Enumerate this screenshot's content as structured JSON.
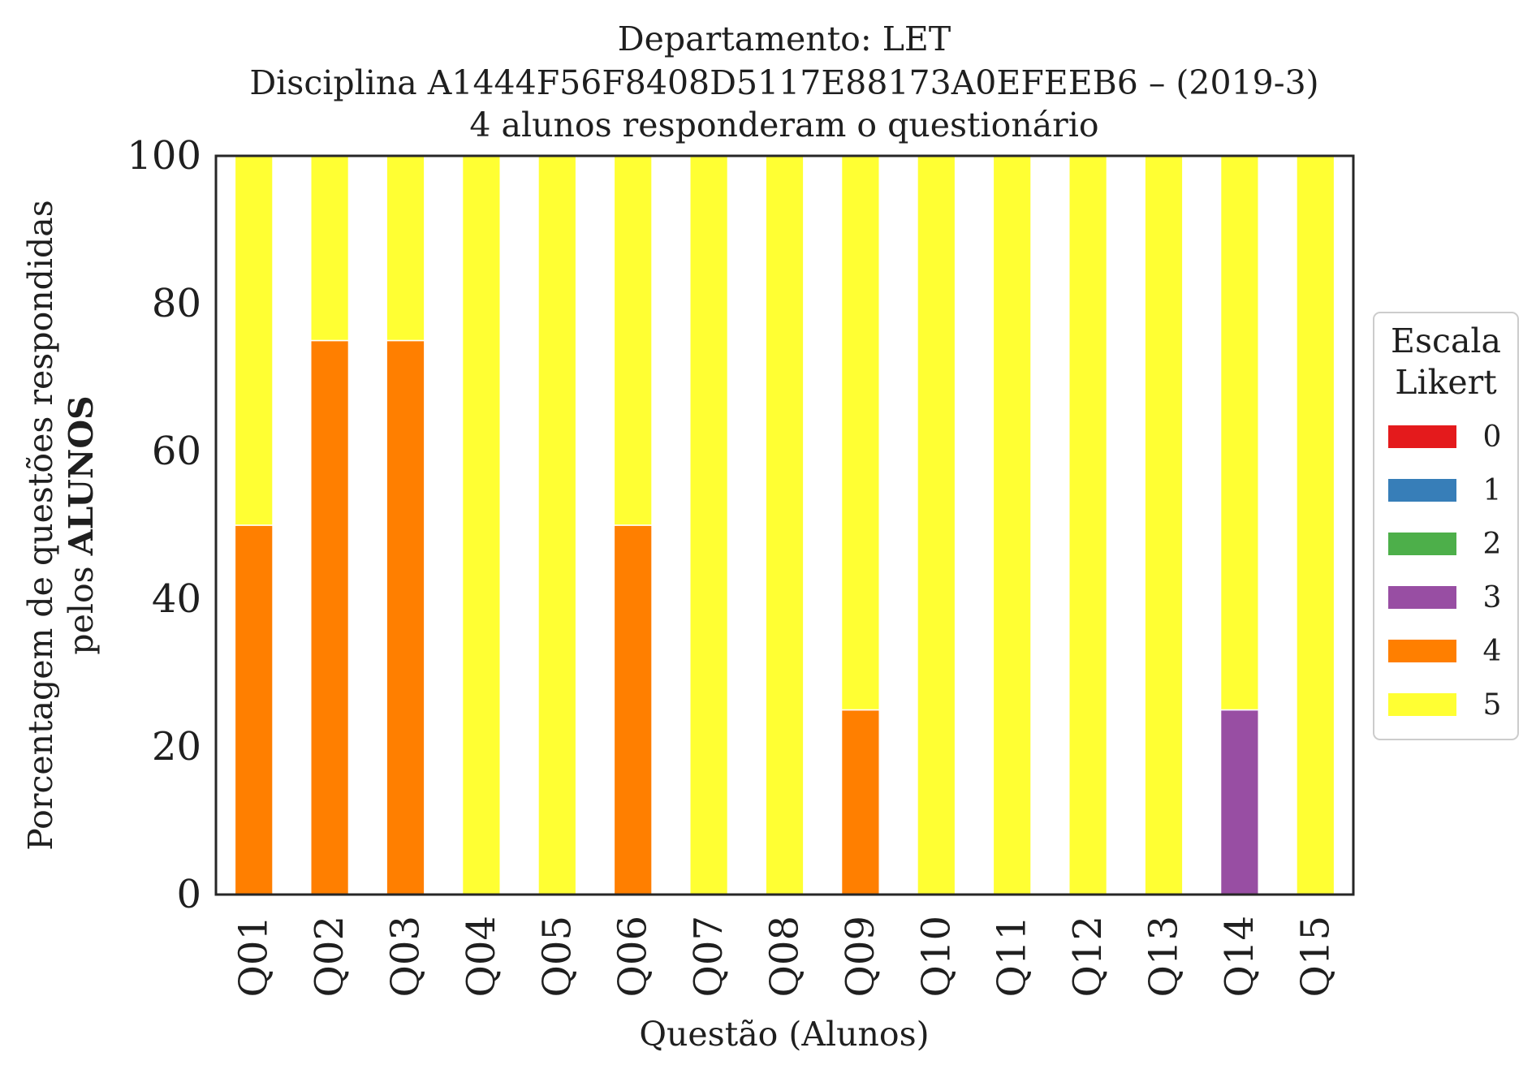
{
  "chart_data": {
    "type": "bar",
    "stacked": true,
    "title_lines": [
      "Departamento: LET",
      "Disciplina A1444F56F8408D5117E88173A0EFEEB6 – (2019-3)",
      "4 alunos responderam o questionário"
    ],
    "xlabel": "Questão (Alunos)",
    "ylabel_line1": "Porcentagem de questões respondidas",
    "ylabel_line2_prefix": "pelos ",
    "ylabel_line2_bold": "ALUNOS",
    "ylim": [
      0,
      100
    ],
    "yticks": [
      0,
      20,
      40,
      60,
      80,
      100
    ],
    "grid": false,
    "legend": {
      "title_lines": [
        "Escala",
        "Likert"
      ],
      "placement": "right-center"
    },
    "categories": [
      "Q01",
      "Q02",
      "Q03",
      "Q04",
      "Q05",
      "Q06",
      "Q07",
      "Q08",
      "Q09",
      "Q10",
      "Q11",
      "Q12",
      "Q13",
      "Q14",
      "Q15"
    ],
    "series": [
      {
        "name": "0",
        "color": "#e41a1c",
        "values": [
          0,
          0,
          0,
          0,
          0,
          0,
          0,
          0,
          0,
          0,
          0,
          0,
          0,
          0,
          0
        ]
      },
      {
        "name": "1",
        "color": "#377eb8",
        "values": [
          0,
          0,
          0,
          0,
          0,
          0,
          0,
          0,
          0,
          0,
          0,
          0,
          0,
          0,
          0
        ]
      },
      {
        "name": "2",
        "color": "#4daf4a",
        "values": [
          0,
          0,
          0,
          0,
          0,
          0,
          0,
          0,
          0,
          0,
          0,
          0,
          0,
          0,
          0
        ]
      },
      {
        "name": "3",
        "color": "#984ea3",
        "values": [
          0,
          0,
          0,
          0,
          0,
          0,
          0,
          0,
          0,
          0,
          0,
          0,
          0,
          25,
          0
        ]
      },
      {
        "name": "4",
        "color": "#ff7f00",
        "values": [
          50,
          75,
          75,
          0,
          0,
          50,
          0,
          0,
          25,
          0,
          0,
          0,
          0,
          0,
          0
        ]
      },
      {
        "name": "5",
        "color": "#ffff33",
        "values": [
          50,
          25,
          25,
          100,
          100,
          50,
          100,
          100,
          75,
          100,
          100,
          100,
          100,
          75,
          100
        ]
      }
    ]
  }
}
